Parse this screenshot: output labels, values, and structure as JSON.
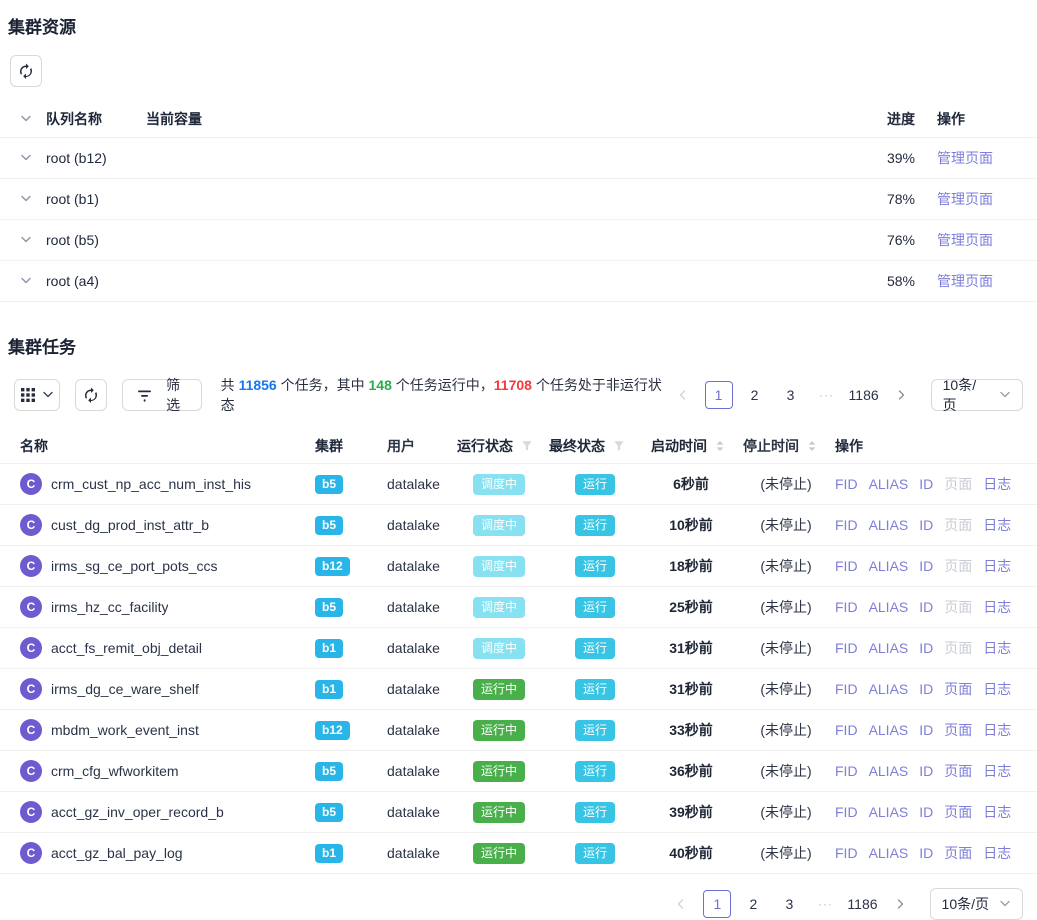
{
  "resources": {
    "title": "集群资源",
    "headers": {
      "queue": "队列名称",
      "capacity": "当前容量",
      "progress": "进度",
      "actions": "操作"
    },
    "manage_label": "管理页面",
    "rows": [
      {
        "name": "root (b12)",
        "percent": "39%"
      },
      {
        "name": "root (b1)",
        "percent": "78%"
      },
      {
        "name": "root (b5)",
        "percent": "76%"
      },
      {
        "name": "root (a4)",
        "percent": "58%"
      }
    ]
  },
  "tasks": {
    "title": "集群任务",
    "toolbar": {
      "filter_label": "筛选",
      "summary": {
        "prefix": "共 ",
        "total": "11856",
        "mid1": " 个任务，其中 ",
        "running": "148",
        "mid2": " 个任务运行中，",
        "nonrunning": "11708",
        "suffix": " 个任务处于非运行状态"
      }
    },
    "pagination": {
      "pages": [
        "1",
        "2",
        "3"
      ],
      "ellipsis": "···",
      "last": "1186",
      "page_size": "10条/页"
    },
    "headers": {
      "name": "名称",
      "cluster": "集群",
      "user": "用户",
      "run_status": "运行状态",
      "final_status": "最终状态",
      "start_time": "启动时间",
      "stop_time": "停止时间",
      "actions": "操作"
    },
    "ops": {
      "fid": "FID",
      "alias": "ALIAS",
      "id": "ID",
      "page": "页面",
      "log": "日志"
    },
    "rows": [
      {
        "avatar": "C",
        "name": "crm_cust_np_acc_num_inst_his",
        "cluster": "b5",
        "user": "datalake",
        "run_status": "调度中",
        "run_state": "scheduling",
        "final_status": "运行",
        "start": "6秒前",
        "stop": "(未停止)",
        "page_enabled": false
      },
      {
        "avatar": "C",
        "name": "cust_dg_prod_inst_attr_b",
        "cluster": "b5",
        "user": "datalake",
        "run_status": "调度中",
        "run_state": "scheduling",
        "final_status": "运行",
        "start": "10秒前",
        "stop": "(未停止)",
        "page_enabled": false
      },
      {
        "avatar": "C",
        "name": "irms_sg_ce_port_pots_ccs",
        "cluster": "b12",
        "user": "datalake",
        "run_status": "调度中",
        "run_state": "scheduling",
        "final_status": "运行",
        "start": "18秒前",
        "stop": "(未停止)",
        "page_enabled": false
      },
      {
        "avatar": "C",
        "name": "irms_hz_cc_facility",
        "cluster": "b5",
        "user": "datalake",
        "run_status": "调度中",
        "run_state": "scheduling",
        "final_status": "运行",
        "start": "25秒前",
        "stop": "(未停止)",
        "page_enabled": false
      },
      {
        "avatar": "C",
        "name": "acct_fs_remit_obj_detail",
        "cluster": "b1",
        "user": "datalake",
        "run_status": "调度中",
        "run_state": "scheduling",
        "final_status": "运行",
        "start": "31秒前",
        "stop": "(未停止)",
        "page_enabled": false
      },
      {
        "avatar": "C",
        "name": "irms_dg_ce_ware_shelf",
        "cluster": "b1",
        "user": "datalake",
        "run_status": "运行中",
        "run_state": "running",
        "final_status": "运行",
        "start": "31秒前",
        "stop": "(未停止)",
        "page_enabled": true
      },
      {
        "avatar": "C",
        "name": "mbdm_work_event_inst",
        "cluster": "b12",
        "user": "datalake",
        "run_status": "运行中",
        "run_state": "running",
        "final_status": "运行",
        "start": "33秒前",
        "stop": "(未停止)",
        "page_enabled": true
      },
      {
        "avatar": "C",
        "name": "crm_cfg_wfworkitem",
        "cluster": "b5",
        "user": "datalake",
        "run_status": "运行中",
        "run_state": "running",
        "final_status": "运行",
        "start": "36秒前",
        "stop": "(未停止)",
        "page_enabled": true
      },
      {
        "avatar": "C",
        "name": "acct_gz_inv_oper_record_b",
        "cluster": "b5",
        "user": "datalake",
        "run_status": "运行中",
        "run_state": "running",
        "final_status": "运行",
        "start": "39秒前",
        "stop": "(未停止)",
        "page_enabled": true
      },
      {
        "avatar": "C",
        "name": "acct_gz_bal_pay_log",
        "cluster": "b1",
        "user": "datalake",
        "run_status": "运行中",
        "run_state": "running",
        "final_status": "运行",
        "start": "40秒前",
        "stop": "(未停止)",
        "page_enabled": true
      }
    ]
  },
  "colors": {
    "link": "#7e7edb",
    "accent": "#6f6fd0",
    "cluster_badge": "#29b5e8",
    "badge_scheduling": "#87e1f0",
    "badge_running": "#49af4b",
    "badge_final": "#38c4e4",
    "num_blue": "#1677f0",
    "num_green": "#27ae4a",
    "num_red": "#f5383d",
    "progress_dark": "#0e76f6",
    "progress_light": "#3e96ff"
  }
}
